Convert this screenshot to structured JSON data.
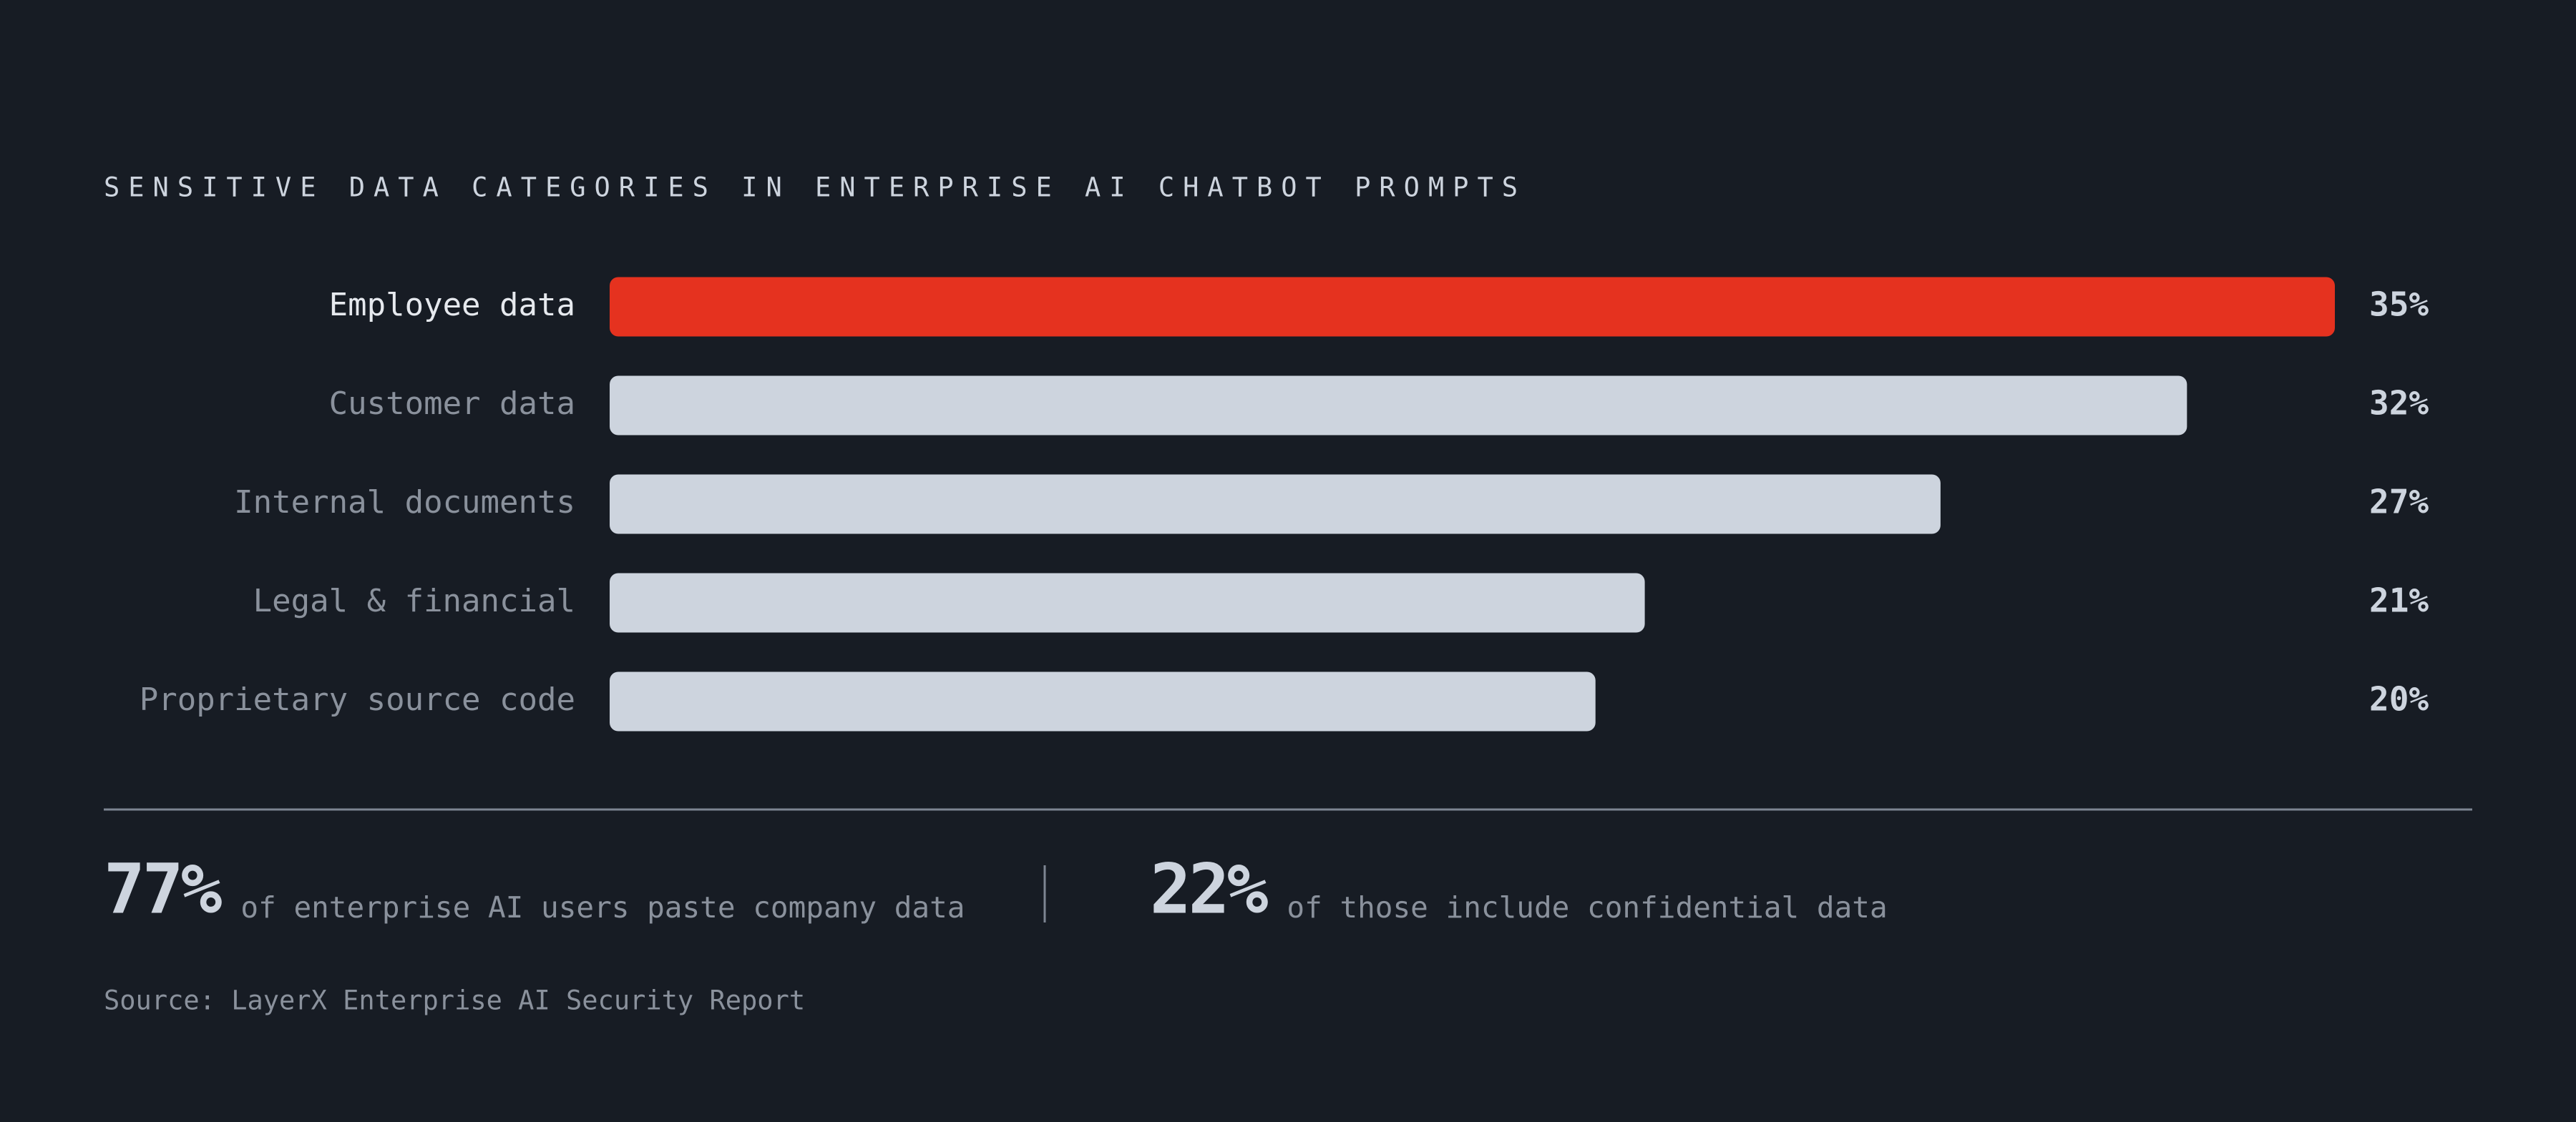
{
  "chart_data": {
    "type": "hbar",
    "title": "SENSITIVE DATA CATEGORIES IN ENTERPRISE AI CHATBOT PROMPTS",
    "categories": [
      "Employee data",
      "Customer data",
      "Internal documents",
      "Legal & financial",
      "Proprietary source code"
    ],
    "values": [
      35,
      32,
      27,
      21,
      20
    ],
    "value_labels": [
      "35%",
      "32%",
      "27%",
      "21%",
      "20%"
    ],
    "colors": [
      "#e5321f",
      "#cdd4de",
      "#cdd4de",
      "#cdd4de",
      "#cdd4de"
    ],
    "xlim": [
      0,
      35
    ]
  },
  "stats": [
    {
      "figure": "77%",
      "text": "of enterprise AI users paste company data"
    },
    {
      "figure": "22%",
      "text": "of those include confidential data"
    }
  ],
  "source": "Source: LayerX Enterprise AI Security Report"
}
